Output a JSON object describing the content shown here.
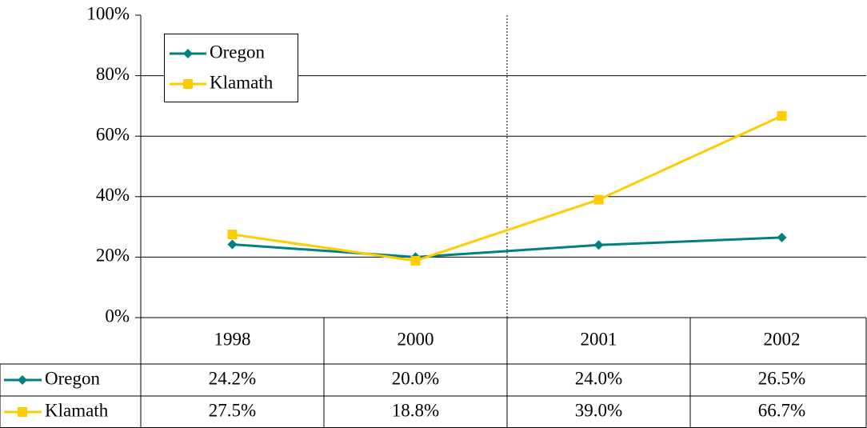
{
  "chart_data": {
    "type": "line",
    "categories": [
      "1998",
      "2000",
      "2001",
      "2002"
    ],
    "series": [
      {
        "name": "Oregon",
        "color": "#008080",
        "marker": "diamond",
        "values": [
          24.2,
          20.0,
          24.0,
          26.5
        ],
        "value_labels": [
          "24.2%",
          "20.0%",
          "24.0%",
          "26.5%"
        ]
      },
      {
        "name": "Klamath",
        "color": "#ffcc00",
        "marker": "square",
        "values": [
          27.5,
          18.8,
          39.0,
          66.7
        ],
        "value_labels": [
          "27.5%",
          "18.8%",
          "39.0%",
          "66.7%"
        ]
      }
    ],
    "ylim": [
      0,
      100
    ],
    "yticks": [
      {
        "value": 0,
        "label": "0%"
      },
      {
        "value": 20,
        "label": "20%"
      },
      {
        "value": 40,
        "label": "40%"
      },
      {
        "value": 60,
        "label": "60%"
      },
      {
        "value": 80,
        "label": "80%"
      },
      {
        "value": 100,
        "label": "100%"
      }
    ],
    "grid": true,
    "legend": "upper left",
    "data_table": true
  }
}
